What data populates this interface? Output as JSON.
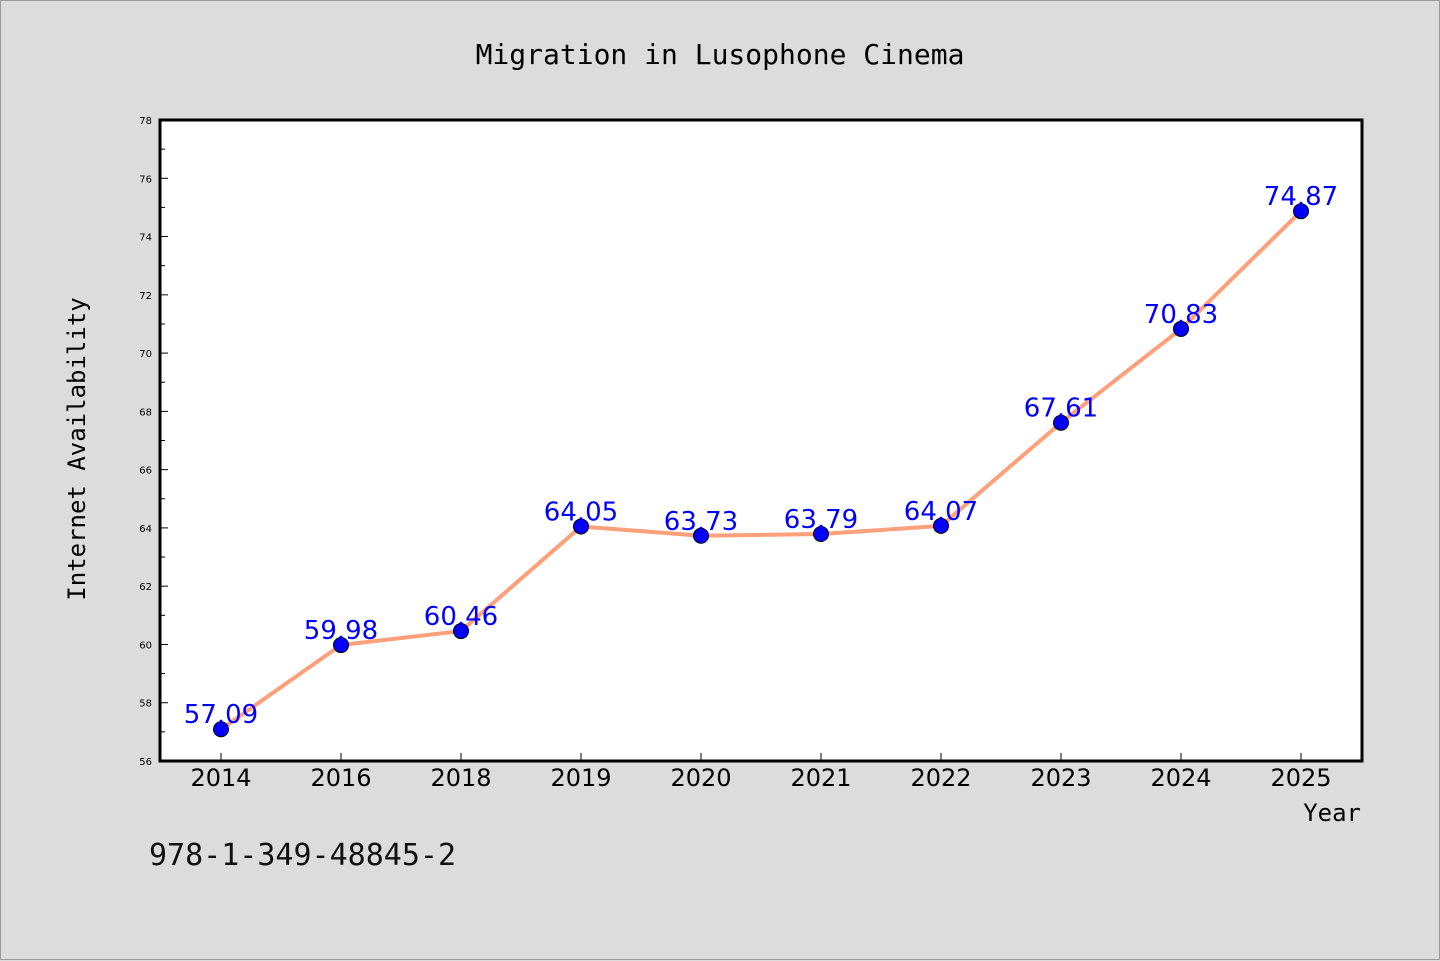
{
  "chart_data": {
    "type": "line",
    "title": "Migration in Lusophone Cinema",
    "xlabel": "Year",
    "ylabel": "Internet Availability",
    "categories": [
      "2014",
      "2016",
      "2018",
      "2019",
      "2020",
      "2021",
      "2022",
      "2023",
      "2024",
      "2025"
    ],
    "series": [
      {
        "values": [
          57.09,
          59.98,
          60.46,
          64.05,
          63.73,
          63.79,
          64.07,
          67.61,
          70.83,
          74.87
        ],
        "labels": [
          "57.09",
          "59.98",
          "60.46",
          "64.05",
          "63.73",
          "63.79",
          "64.07",
          "67.61",
          "70.83",
          "74.87"
        ],
        "line_color": "#ffa07a",
        "marker_color": "#0000ff"
      }
    ],
    "ylim": [
      56,
      78
    ],
    "yticks": [
      56,
      58,
      60,
      62,
      64,
      66,
      68,
      70,
      72,
      74,
      76,
      78
    ],
    "grid": false,
    "legend": "none"
  },
  "footer": {
    "text": "978-1-349-48845-2"
  },
  "colors": {
    "background": "#dcdcdc",
    "plot_background": "#ffffff",
    "data_label": "#0000ff"
  }
}
